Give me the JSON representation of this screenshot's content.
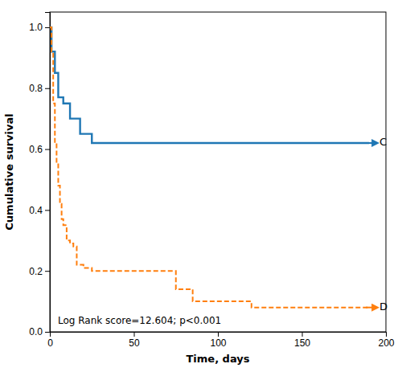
{
  "chart_data": {
    "type": "step",
    "xlabel": "Time, days",
    "ylabel": "Cumulative survival",
    "annotation": "Log Rank score=12.604; p<0.001",
    "xlim": [
      0,
      200
    ],
    "ylim": [
      0,
      1.05
    ],
    "xticks": [
      0,
      50,
      100,
      150,
      200
    ],
    "yticks": [
      {
        "value": 0,
        "label": "0.0"
      },
      0.2,
      0.4,
      0.6,
      0.8,
      {
        "value": 1,
        "label": "1.0"
      }
    ],
    "series": [
      {
        "name": "C",
        "line_style": "solid",
        "x": [
          0,
          1,
          1,
          3,
          3,
          5,
          5,
          8,
          8,
          12,
          12,
          18,
          18,
          25,
          25,
          55,
          55,
          65,
          65,
          190
        ],
        "values": [
          1.0,
          1.0,
          0.92,
          0.92,
          0.85,
          0.85,
          0.77,
          0.77,
          0.75,
          0.75,
          0.7,
          0.7,
          0.65,
          0.65,
          0.62,
          0.62,
          0.62,
          0.62,
          0.62,
          0.62
        ]
      },
      {
        "name": "D",
        "line_style": "dashed",
        "x": [
          0,
          1,
          1,
          2,
          2,
          3,
          3,
          4,
          4,
          5,
          5,
          6,
          6,
          7,
          7,
          8,
          8,
          10,
          10,
          12,
          12,
          14,
          14,
          16,
          16,
          20,
          20,
          25,
          25,
          30,
          30,
          40,
          40,
          50,
          50,
          75,
          75,
          85,
          85,
          90,
          90,
          120,
          120,
          190
        ],
        "values": [
          1.0,
          1.0,
          0.92,
          0.92,
          0.75,
          0.75,
          0.62,
          0.62,
          0.55,
          0.55,
          0.48,
          0.48,
          0.42,
          0.42,
          0.37,
          0.37,
          0.35,
          0.35,
          0.3,
          0.3,
          0.29,
          0.29,
          0.28,
          0.28,
          0.22,
          0.22,
          0.21,
          0.21,
          0.2,
          0.2,
          0.2,
          0.2,
          0.2,
          0.2,
          0.2,
          0.2,
          0.14,
          0.14,
          0.1,
          0.1,
          0.1,
          0.1,
          0.08,
          0.08
        ]
      }
    ]
  }
}
